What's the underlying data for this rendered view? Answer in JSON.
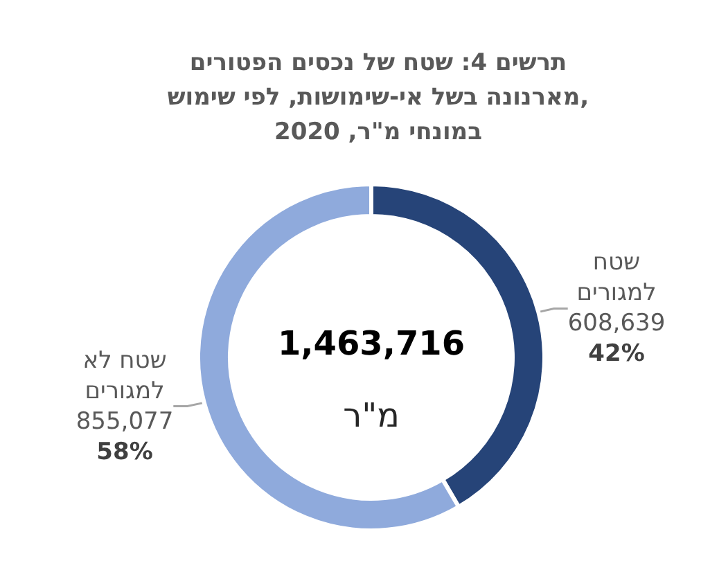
{
  "chart_data": {
    "type": "donut",
    "title": "תרשים 4: שטח של נכסים הפטורים\nמארנונה בשל אי-שימושות, לפי שימוש,\nבמונחי מ\"ר, 2020",
    "categories": [
      "שטח למגורים",
      "שטח לא למגורים"
    ],
    "values": [
      608639,
      855077
    ],
    "colors": [
      "#264478",
      "#8faadc"
    ],
    "value_labels": [
      "608,639\n42%",
      "855,077\n58%"
    ],
    "annotations": [
      "1,463,716",
      "מ\"ר"
    ]
  }
}
